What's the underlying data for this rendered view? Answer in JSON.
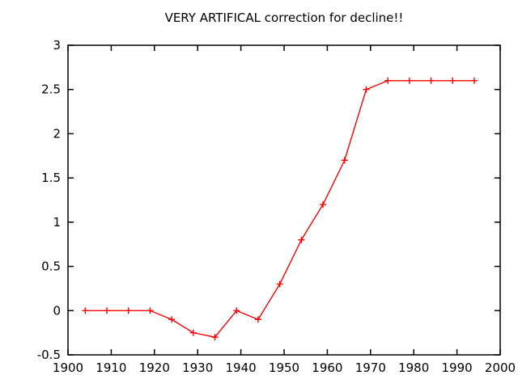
{
  "window": {
    "background_color": "#ffffff"
  },
  "chart_data": {
    "type": "line",
    "title": "VERY ARTIFICAL correction for decline!!",
    "x": [
      1904,
      1909,
      1914,
      1919,
      1924,
      1929,
      1934,
      1939,
      1944,
      1949,
      1954,
      1959,
      1964,
      1969,
      1974,
      1979,
      1984,
      1989,
      1994
    ],
    "values": [
      0,
      0,
      0,
      0,
      -0.1,
      -0.25,
      -0.3,
      0,
      -0.1,
      0.3,
      0.8,
      1.2,
      1.7,
      2.5,
      2.6,
      2.6,
      2.6,
      2.6,
      2.6
    ],
    "xlabel": "",
    "ylabel": "",
    "xlim": [
      1900,
      2000
    ],
    "ylim": [
      -0.5,
      3
    ],
    "x_ticks": [
      1900,
      1910,
      1920,
      1930,
      1940,
      1950,
      1960,
      1970,
      1980,
      1990,
      2000
    ],
    "x_tick_labels": [
      "1900",
      "1910",
      "1920",
      "1930",
      "1940",
      "1950",
      "1960",
      "1970",
      "1980",
      "1990",
      "2000"
    ],
    "y_ticks": [
      -0.5,
      0,
      0.5,
      1,
      1.5,
      2,
      2.5,
      3
    ],
    "y_tick_labels": [
      "-0.5",
      "0",
      "0.5",
      "1",
      "1.5",
      "2",
      "2.5",
      "3"
    ],
    "grid": false,
    "legend": "none",
    "marker": "plus",
    "series_color": "#ff0000",
    "axis_color": "#000000",
    "text_color": "#000000"
  }
}
